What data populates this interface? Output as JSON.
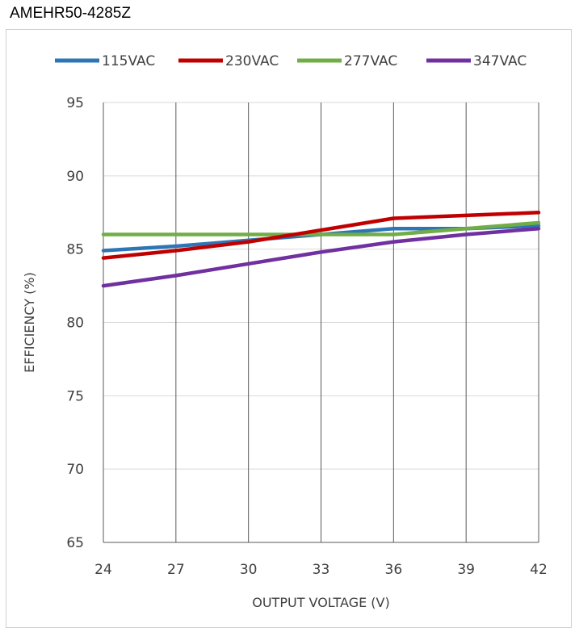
{
  "chart_data": {
    "type": "line",
    "title": "AMEHR50-4285Z",
    "xlabel": "OUTPUT VOLTAGE (V)",
    "ylabel": "EFFICIENCY (%)",
    "x": [
      24,
      27,
      30,
      33,
      36,
      39,
      42
    ],
    "xlim": [
      24,
      42
    ],
    "ylim": [
      65,
      95
    ],
    "yticks": [
      65,
      70,
      75,
      80,
      85,
      90,
      95
    ],
    "grid": "vertical and horizontal",
    "legend": "top",
    "series": [
      {
        "name": "115VAC",
        "color": "#2E75B6",
        "values": [
          84.9,
          85.2,
          85.6,
          86.0,
          86.4,
          86.4,
          86.6
        ]
      },
      {
        "name": "230VAC",
        "color": "#C00000",
        "values": [
          84.4,
          84.9,
          85.5,
          86.3,
          87.1,
          87.3,
          87.5
        ]
      },
      {
        "name": "277VAC",
        "color": "#70AD47",
        "values": [
          86.0,
          86.0,
          86.0,
          86.0,
          86.0,
          86.4,
          86.8
        ]
      },
      {
        "name": "347VAC",
        "color": "#7030A0",
        "values": [
          82.5,
          83.2,
          84.0,
          84.8,
          85.5,
          86.0,
          86.4
        ]
      }
    ]
  }
}
